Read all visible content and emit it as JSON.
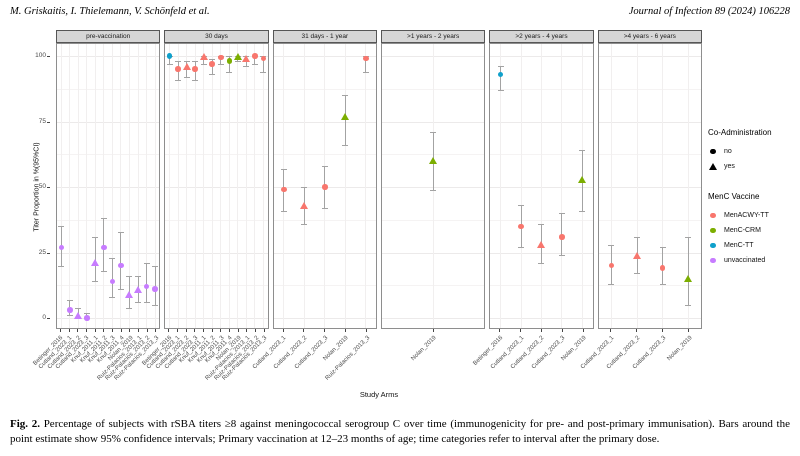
{
  "header": {
    "authors": "M. Griskaitis, I. Thielemann, V. Schönfeld et al.",
    "journal": "Journal of Infection 89 (2024) 106228"
  },
  "caption": {
    "label": "Fig. 2.",
    "text": "Percentage of subjects with rSBA titers ≥8 against meningococcal serogroup C over time (immunogenicity for pre- and post-primary immunisation). Bars around the point estimate show 95% confidence intervals; Primary vaccination at 12–23 months of age; time categories refer to interval after the primary dose."
  },
  "chart_data": {
    "type": "scatter",
    "xlabel": "Study Arms",
    "ylabel": "Titer Proportion in %(95%CI)",
    "ylim": [
      0,
      100
    ],
    "yticks": [
      0,
      25,
      50,
      75,
      100
    ],
    "grid": true,
    "legend_position": "right",
    "colors": {
      "MenACWY-TT": "#F8766D",
      "MenC-CRM": "#7CAE00",
      "MenC-TT": "#0FA0CB",
      "unvaccinated": "#C77CFF"
    },
    "legend": {
      "coadmin": {
        "title": "Co-Administration",
        "items": [
          {
            "label": "no",
            "shape": "circle"
          },
          {
            "label": "yes",
            "shape": "triangle"
          }
        ]
      },
      "vaccine": {
        "title": "MenC Vaccine",
        "items": [
          {
            "label": "MenACWY-TT",
            "color": "#F8766D"
          },
          {
            "label": "MenC-CRM",
            "color": "#7CAE00"
          },
          {
            "label": "MenC-TT",
            "color": "#0FA0CB"
          },
          {
            "label": "unvaccinated",
            "color": "#C77CFF"
          }
        ]
      }
    },
    "panels": [
      {
        "title": "pre-vaccination",
        "points": [
          {
            "arm": "Betinger_2016",
            "vaccine": "unvaccinated",
            "coadmin": "no",
            "value": 27,
            "ci": [
              20,
              35
            ]
          },
          {
            "arm": "Cutland_2023_1",
            "vaccine": "unvaccinated",
            "coadmin": "no",
            "value": 3,
            "ci": [
              1,
              7
            ]
          },
          {
            "arm": "Cutland_2023_2",
            "vaccine": "unvaccinated",
            "coadmin": "yes",
            "value": 1,
            "ci": [
              0,
              4
            ]
          },
          {
            "arm": "Cutland_2023_3",
            "vaccine": "unvaccinated",
            "coadmin": "no",
            "value": 0,
            "ci": [
              0,
              2
            ]
          },
          {
            "arm": "Knuf_2011_1",
            "vaccine": "unvaccinated",
            "coadmin": "yes",
            "value": 21,
            "ci": [
              14,
              31
            ]
          },
          {
            "arm": "Knuf_2011_2",
            "vaccine": "unvaccinated",
            "coadmin": "no",
            "value": 27,
            "ci": [
              18,
              38
            ]
          },
          {
            "arm": "Knuf_2011_3",
            "vaccine": "unvaccinated",
            "coadmin": "no",
            "value": 14,
            "ci": [
              8,
              23
            ]
          },
          {
            "arm": "Knuf_2011_4",
            "vaccine": "unvaccinated",
            "coadmin": "no",
            "value": 20,
            "ci": [
              11,
              33
            ]
          },
          {
            "arm": "Nolan_2019",
            "vaccine": "unvaccinated",
            "coadmin": "yes",
            "value": 9,
            "ci": [
              4,
              16
            ]
          },
          {
            "arm": "Ruiz-Palacios_2013_1",
            "vaccine": "unvaccinated",
            "coadmin": "yes",
            "value": 11,
            "ci": [
              6,
              16
            ]
          },
          {
            "arm": "Ruiz-Palacios_2013_2",
            "vaccine": "unvaccinated",
            "coadmin": "no",
            "value": 12,
            "ci": [
              6,
              21
            ]
          },
          {
            "arm": "Ruiz-Palacios_2013_3",
            "vaccine": "unvaccinated",
            "coadmin": "no",
            "value": 11,
            "ci": [
              5,
              20
            ]
          }
        ]
      },
      {
        "title": "30 days",
        "points": [
          {
            "arm": "Betinger_2016",
            "vaccine": "MenC-TT",
            "coadmin": "no",
            "value": 100,
            "ci": [
              97,
              100
            ]
          },
          {
            "arm": "Cutland_2023_1",
            "vaccine": "MenACWY-TT",
            "coadmin": "no",
            "value": 95,
            "ci": [
              91,
              98
            ]
          },
          {
            "arm": "Cutland_2023_2",
            "vaccine": "MenACWY-TT",
            "coadmin": "yes",
            "value": 96,
            "ci": [
              92,
              98
            ]
          },
          {
            "arm": "Cutland_2023_3",
            "vaccine": "MenACWY-TT",
            "coadmin": "no",
            "value": 95,
            "ci": [
              91,
              98
            ]
          },
          {
            "arm": "Knuf_2011_1",
            "vaccine": "MenACWY-TT",
            "coadmin": "yes",
            "value": 100,
            "ci": [
              97,
              100
            ]
          },
          {
            "arm": "Knuf_2011_2",
            "vaccine": "MenACWY-TT",
            "coadmin": "no",
            "value": 97,
            "ci": [
              93,
              99
            ]
          },
          {
            "arm": "Knuf_2011_3",
            "vaccine": "MenACWY-TT",
            "coadmin": "no",
            "value": 99.5,
            "ci": [
              97,
              100
            ]
          },
          {
            "arm": "Knuf_2011_4",
            "vaccine": "MenC-CRM",
            "coadmin": "no",
            "value": 98,
            "ci": [
              94,
              100
            ]
          },
          {
            "arm": "Nolan_2019",
            "vaccine": "MenC-CRM",
            "coadmin": "yes",
            "value": 100,
            "ci": [
              98,
              100
            ]
          },
          {
            "arm": "Ruiz-Palacios_2013_1",
            "vaccine": "MenACWY-TT",
            "coadmin": "yes",
            "value": 99,
            "ci": [
              96,
              100
            ]
          },
          {
            "arm": "Ruiz-Palacios_2013_2",
            "vaccine": "MenACWY-TT",
            "coadmin": "no",
            "value": 100,
            "ci": [
              97,
              100
            ]
          },
          {
            "arm": "Ruiz-Palacios_2013_3",
            "vaccine": "MenACWY-TT",
            "coadmin": "no",
            "value": 99,
            "ci": [
              94,
              100
            ]
          }
        ]
      },
      {
        "title": "31 days - 1 year",
        "points": [
          {
            "arm": "Cutland_2023_1",
            "vaccine": "MenACWY-TT",
            "coadmin": "no",
            "value": 49,
            "ci": [
              41,
              57
            ]
          },
          {
            "arm": "Cutland_2023_2",
            "vaccine": "MenACWY-TT",
            "coadmin": "yes",
            "value": 43,
            "ci": [
              36,
              50
            ]
          },
          {
            "arm": "Cutland_2023_3",
            "vaccine": "MenACWY-TT",
            "coadmin": "no",
            "value": 50,
            "ci": [
              42,
              58
            ]
          },
          {
            "arm": "Nolan_2019",
            "vaccine": "MenC-CRM",
            "coadmin": "yes",
            "value": 77,
            "ci": [
              66,
              85
            ]
          },
          {
            "arm": "Ruiz-Palacios_2013_3",
            "vaccine": "MenACWY-TT",
            "coadmin": "no",
            "value": 99,
            "ci": [
              94,
              100
            ]
          }
        ]
      },
      {
        "title": ">1 years - 2 years",
        "points": [
          {
            "arm": "Nolan_2019",
            "vaccine": "MenC-CRM",
            "coadmin": "yes",
            "value": 60,
            "ci": [
              49,
              71
            ]
          }
        ]
      },
      {
        "title": ">2 years - 4 years",
        "points": [
          {
            "arm": "Betinger_2016",
            "vaccine": "MenC-TT",
            "coadmin": "no",
            "value": 93,
            "ci": [
              87,
              96
            ]
          },
          {
            "arm": "Cutland_2023_1",
            "vaccine": "MenACWY-TT",
            "coadmin": "no",
            "value": 35,
            "ci": [
              27,
              43
            ]
          },
          {
            "arm": "Cutland_2023_2",
            "vaccine": "MenACWY-TT",
            "coadmin": "yes",
            "value": 28,
            "ci": [
              21,
              36
            ]
          },
          {
            "arm": "Cutland_2023_3",
            "vaccine": "MenACWY-TT",
            "coadmin": "no",
            "value": 31,
            "ci": [
              24,
              40
            ]
          },
          {
            "arm": "Nolan_2019",
            "vaccine": "MenC-CRM",
            "coadmin": "yes",
            "value": 53,
            "ci": [
              41,
              64
            ]
          }
        ]
      },
      {
        "title": ">4 years - 6 years",
        "points": [
          {
            "arm": "Cutland_2023_1",
            "vaccine": "MenACWY-TT",
            "coadmin": "no",
            "value": 20,
            "ci": [
              13,
              28
            ]
          },
          {
            "arm": "Cutland_2023_2",
            "vaccine": "MenACWY-TT",
            "coadmin": "yes",
            "value": 24,
            "ci": [
              17,
              31
            ]
          },
          {
            "arm": "Cutland_2023_3",
            "vaccine": "MenACWY-TT",
            "coadmin": "no",
            "value": 19,
            "ci": [
              13,
              27
            ]
          },
          {
            "arm": "Nolan_2019",
            "vaccine": "MenC-CRM",
            "coadmin": "yes",
            "value": 15,
            "ci": [
              5,
              31
            ]
          }
        ]
      }
    ]
  }
}
